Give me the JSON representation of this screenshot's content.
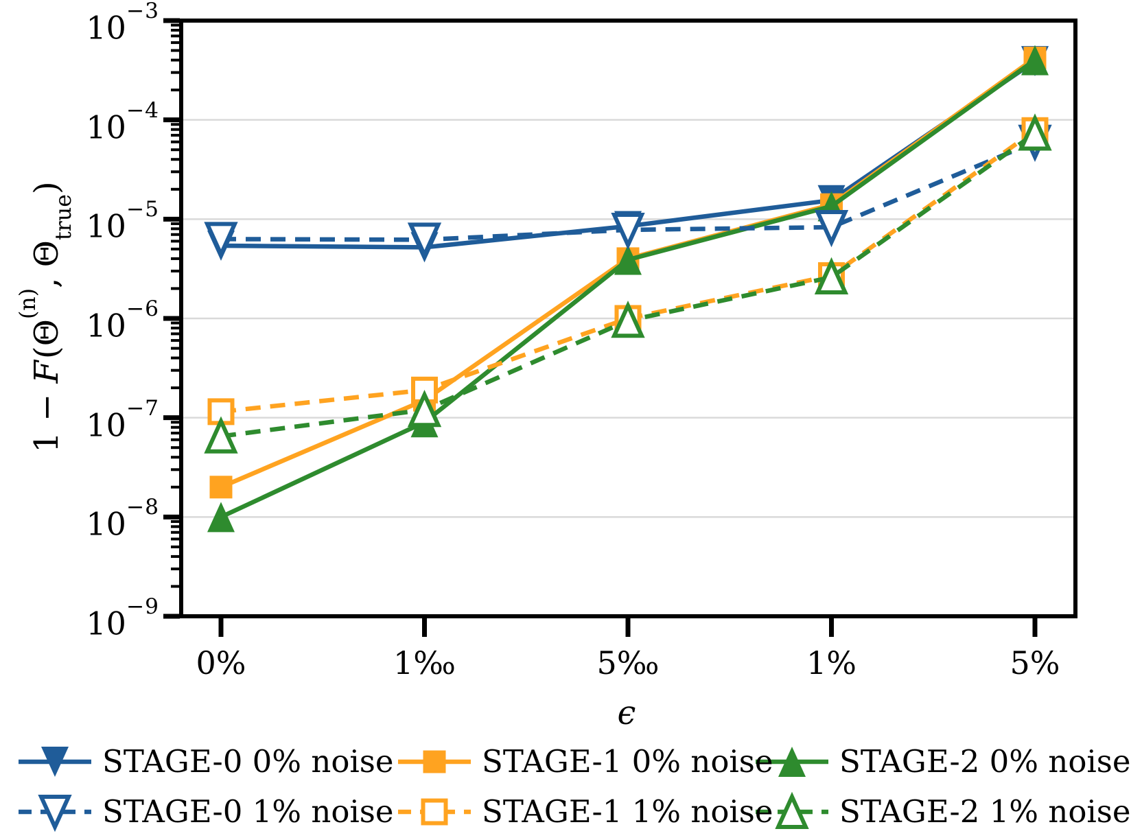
{
  "figure": {
    "ylabel": {
      "pre": "1 − ",
      "f": "F",
      "open": "(Θ",
      "sup": "(n)",
      "comma": ", Θ",
      "sub": "true",
      "close": ")"
    }
  },
  "chart_data": {
    "type": "line",
    "x_categories": [
      "0%",
      "1‰",
      "5‰",
      "1%",
      "5%"
    ],
    "xlabel": "ϵ",
    "ylabel": "1 - F(Theta^(n), Theta_true)",
    "yscale": "log",
    "ylim": [
      1e-09,
      0.001
    ],
    "y_tick_exponents": [
      -3,
      -4,
      -5,
      -6,
      -7,
      -8,
      -9
    ],
    "grid": "horizontal-major",
    "legend_position": "below-two-rows",
    "colors": {
      "stage0": "#1f5c99",
      "stage1": "#ffa320",
      "stage2": "#2e8b2e",
      "grid": "#d9d9d9",
      "axis": "#000000",
      "background": "#ffffff"
    },
    "series": [
      {
        "name": "STAGE-0 0% noise",
        "color_key": "stage0",
        "line": "solid",
        "marker": "triangle-down",
        "fill": "filled",
        "values": [
          5.4e-06,
          5.2e-06,
          8.5e-06,
          1.55e-05,
          0.00039
        ]
      },
      {
        "name": "STAGE-1 0% noise",
        "color_key": "stage1",
        "line": "solid",
        "marker": "square",
        "fill": "filled",
        "values": [
          2e-08,
          1.5e-07,
          4e-06,
          1.4e-05,
          0.00042
        ]
      },
      {
        "name": "STAGE-2 0% noise",
        "color_key": "stage2",
        "line": "solid",
        "marker": "triangle-up",
        "fill": "filled",
        "values": [
          1e-08,
          9e-08,
          3.9e-06,
          1.35e-05,
          0.0004
        ]
      },
      {
        "name": "STAGE-0 1% noise",
        "color_key": "stage0",
        "line": "dashed",
        "marker": "triangle-down",
        "fill": "open",
        "values": [
          6.3e-06,
          6.2e-06,
          7.8e-06,
          8.3e-06,
          6e-05
        ]
      },
      {
        "name": "STAGE-1 1% noise",
        "color_key": "stage1",
        "line": "dashed",
        "marker": "square",
        "fill": "open",
        "values": [
          1.15e-07,
          1.9e-07,
          1e-06,
          2.7e-06,
          7.8e-05
        ]
      },
      {
        "name": "STAGE-2 1% noise",
        "color_key": "stage2",
        "line": "dashed",
        "marker": "triangle-up",
        "fill": "open",
        "values": [
          6.5e-08,
          1.2e-07,
          9.5e-07,
          2.6e-06,
          7.3e-05
        ]
      }
    ]
  }
}
